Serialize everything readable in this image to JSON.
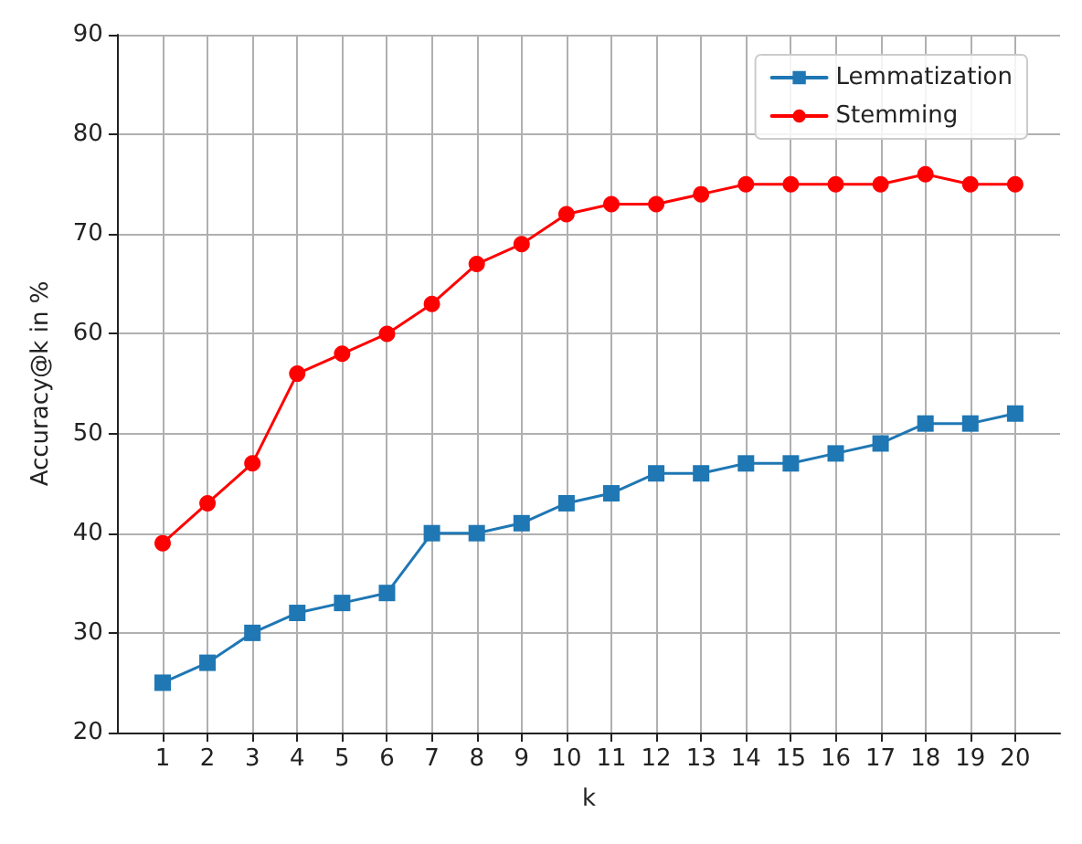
{
  "chart_data": {
    "type": "line",
    "xlabel": "k",
    "ylabel": "Accuracy@k in %",
    "x": [
      1,
      2,
      3,
      4,
      5,
      6,
      7,
      8,
      9,
      10,
      11,
      12,
      13,
      14,
      15,
      16,
      17,
      18,
      19,
      20
    ],
    "series": [
      {
        "name": "Lemmatization",
        "color": "#1f77b4",
        "marker": "square",
        "values": [
          25,
          27,
          30,
          32,
          33,
          34,
          40,
          40,
          41,
          43,
          44,
          46,
          46,
          47,
          47,
          48,
          49,
          51,
          51,
          52
        ]
      },
      {
        "name": "Stemming",
        "color": "#ff0000",
        "marker": "circle",
        "values": [
          39,
          43,
          47,
          56,
          58,
          60,
          63,
          67,
          69,
          72,
          73,
          73,
          74,
          75,
          75,
          75,
          75,
          76,
          75,
          75
        ]
      }
    ],
    "xlim": [
      0,
      21
    ],
    "xticks": [
      1,
      2,
      3,
      4,
      5,
      6,
      7,
      8,
      9,
      10,
      11,
      12,
      13,
      14,
      15,
      16,
      17,
      18,
      19,
      20
    ],
    "ylim": [
      20,
      90
    ],
    "yticks": [
      20,
      30,
      40,
      50,
      60,
      70,
      80,
      90
    ],
    "grid": true,
    "legend": "top right",
    "line_style": "solid"
  }
}
